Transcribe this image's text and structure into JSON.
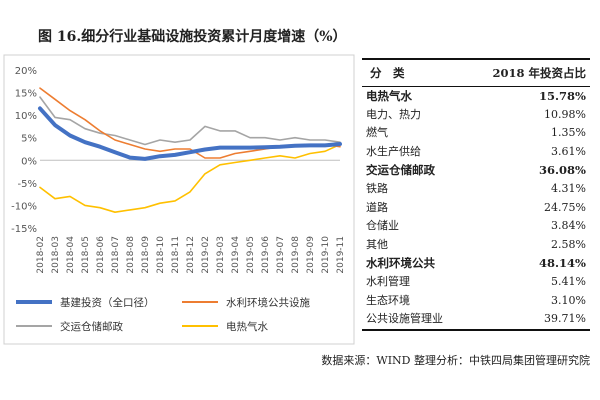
{
  "figure_title": "图 16.细分行业基础设施投资累计月度增速（%）",
  "source_text": "数据来源：WIND   整理分析：中铁四局集团管理研究院",
  "chart_data": {
    "type": "line",
    "title": "图 16.细分行业基础设施投资累计月度增速（%）",
    "xlabel": "",
    "ylabel": "",
    "ylim": [
      -15,
      20
    ],
    "yticks": [
      "20%",
      "15%",
      "10%",
      "5%",
      "0%",
      "-5%",
      "-10%",
      "-15%"
    ],
    "grid": false,
    "legend_position": "bottom",
    "x": [
      "2018-02",
      "2018-03",
      "2018-04",
      "2018-05",
      "2018-06",
      "2018-07",
      "2018-08",
      "2018-09",
      "2018-10",
      "2018-11",
      "2018-12",
      "2019-02",
      "2019-03",
      "2019-04",
      "2019-05",
      "2019-06",
      "2019-07",
      "2019-08",
      "2019-09",
      "2019-10",
      "2019-11"
    ],
    "x_tick_labels": [
      "2018-02",
      "2018-03",
      "2018-04",
      "2018-05",
      "2018-06",
      "2018-07",
      "2018-08",
      "2018-09",
      "2018-10",
      "2018-11",
      "2018-12",
      "2019-02",
      "2019-03",
      "2019-04",
      "2019-05",
      "2019-06",
      "2019-07",
      "2019-08",
      "2019-09",
      "2019-10",
      "2019-11"
    ],
    "series": [
      {
        "name": "基建投资（全口径）",
        "color": "#4472c4",
        "values": [
          11.5,
          7.8,
          5.5,
          4.0,
          3.0,
          1.8,
          0.6,
          0.3,
          0.9,
          1.2,
          1.8,
          2.4,
          2.8,
          2.8,
          2.8,
          2.9,
          3.0,
          3.2,
          3.3,
          3.3,
          3.6
        ]
      },
      {
        "name": "水利环境公共设施",
        "color": "#ed7d31",
        "values": [
          16.0,
          13.5,
          11.0,
          9.0,
          6.5,
          4.5,
          3.5,
          2.5,
          2.0,
          2.5,
          2.5,
          0.5,
          0.5,
          1.5,
          2.0,
          2.5,
          3.0,
          3.0,
          3.5,
          3.5,
          3.0
        ]
      },
      {
        "name": "交运仓储邮政",
        "color": "#a5a5a5",
        "values": [
          14.0,
          9.5,
          9.0,
          7.0,
          6.0,
          5.5,
          4.5,
          3.5,
          4.5,
          4.0,
          4.5,
          7.5,
          6.5,
          6.5,
          5.0,
          5.0,
          4.5,
          5.0,
          4.5,
          4.5,
          4.0
        ]
      },
      {
        "name": "电热气水",
        "color": "#ffc000",
        "values": [
          -6.0,
          -8.5,
          -8.0,
          -10.0,
          -10.5,
          -11.5,
          -11.0,
          -10.5,
          -9.5,
          -9.0,
          -7.0,
          -3.0,
          -1.0,
          -0.5,
          0.0,
          0.5,
          1.0,
          0.5,
          1.5,
          2.0,
          3.5
        ]
      }
    ]
  },
  "table": {
    "header": {
      "category": "分　类",
      "share": "2018 年投资占比"
    },
    "rows": [
      {
        "name": "电热气水",
        "value": "15.78%",
        "bold": true
      },
      {
        "name": "电力、热力",
        "value": "10.98%",
        "bold": false
      },
      {
        "name": "燃气",
        "value": "1.35%",
        "bold": false
      },
      {
        "name": "水生产供给",
        "value": "3.61%",
        "bold": false
      },
      {
        "name": "交运仓储邮政",
        "value": "36.08%",
        "bold": true
      },
      {
        "name": "铁路",
        "value": "4.31%",
        "bold": false
      },
      {
        "name": "道路",
        "value": "24.75%",
        "bold": false
      },
      {
        "name": "仓储业",
        "value": "3.84%",
        "bold": false
      },
      {
        "name": "其他",
        "value": "2.58%",
        "bold": false
      },
      {
        "name": "水利环境公共",
        "value": "48.14%",
        "bold": true
      },
      {
        "name": "水利管理",
        "value": "5.41%",
        "bold": false
      },
      {
        "name": "生态环境",
        "value": "3.10%",
        "bold": false
      },
      {
        "name": "公共设施管理业",
        "value": "39.71%",
        "bold": false
      }
    ]
  }
}
